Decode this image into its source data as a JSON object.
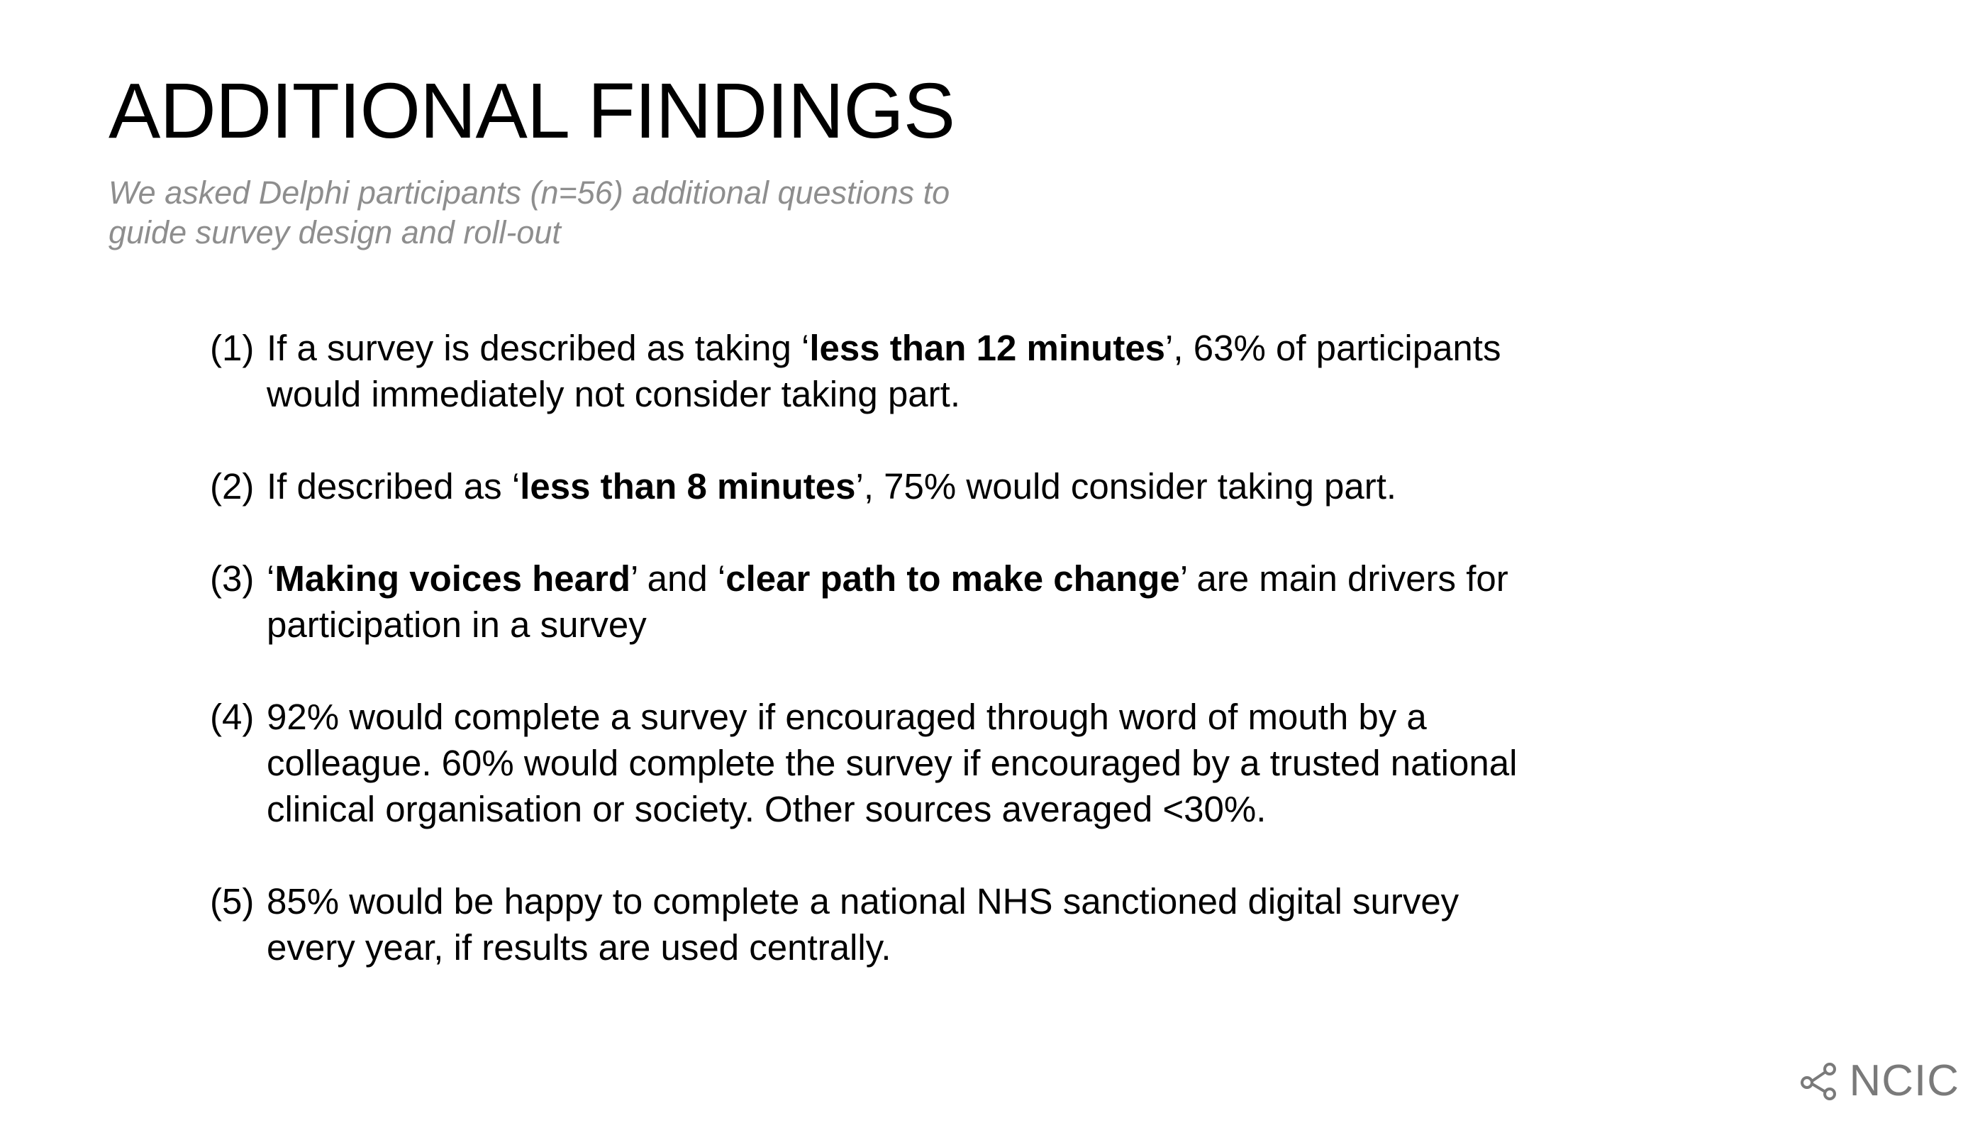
{
  "slide": {
    "title": "ADDITIONAL FINDINGS",
    "subtitle_line1": "We asked Delphi participants (n=56) additional questions to",
    "subtitle_line2": "guide survey design and roll-out"
  },
  "findings": [
    {
      "number": "(1)",
      "parts": [
        "If a survey is described as taking ‘",
        "less than 12 minutes",
        "’, 63% of participants would immediately not consider taking part."
      ]
    },
    {
      "number": "(2)",
      "parts": [
        "If described as ‘",
        "less than 8 minutes",
        "’, 75% would consider taking part."
      ]
    },
    {
      "number": "(3)",
      "parts": [
        "‘",
        "Making voices heard",
        "’ and ‘",
        "clear path to make change",
        "’ are main drivers for participation in a survey"
      ]
    },
    {
      "number": "(4)",
      "parts": [
        "92% would complete a survey if encouraged through word of mouth by a colleague. 60% would complete the survey if encouraged by a trusted national clinical organisation or society. Other sources averaged <30%."
      ]
    },
    {
      "number": "(5)",
      "parts": [
        "85% would be happy to complete a national NHS sanctioned digital survey every year, if results are used centrally."
      ]
    }
  ],
  "logo": {
    "text": "NCIC",
    "icon": "share-nodes-icon",
    "color": "#7a7a7a"
  },
  "colors": {
    "subtitle": "#8e8e8e",
    "text": "#000000",
    "background": "#ffffff"
  }
}
